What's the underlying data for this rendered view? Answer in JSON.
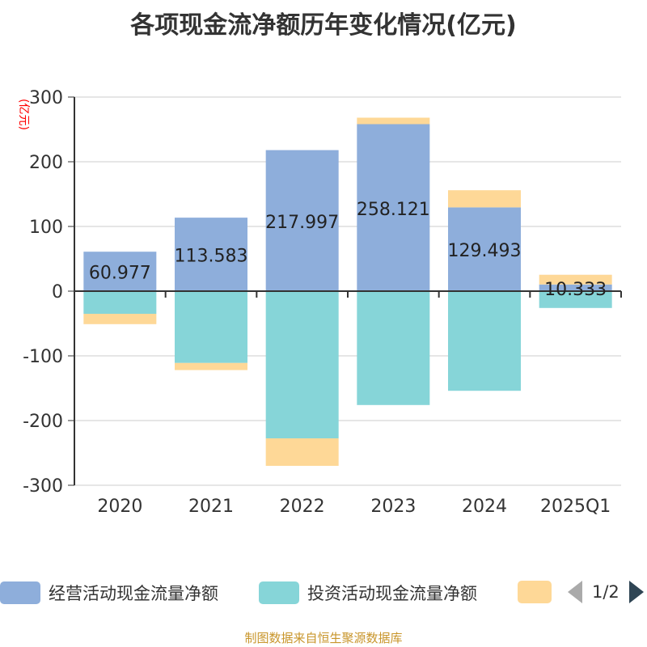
{
  "chart_data": {
    "type": "bar",
    "stacked": true,
    "title": "各项现金流净额历年变化情况(亿元)",
    "ylabel": "(亿元)",
    "categories": [
      "2020",
      "2021",
      "2022",
      "2023",
      "2024",
      "2025Q1"
    ],
    "ylim": [
      -300,
      300
    ],
    "yticks": [
      300,
      200,
      100,
      0,
      -100,
      -200,
      -300
    ],
    "grid": true,
    "series": [
      {
        "name": "经营活动现金流量净额",
        "color": "#8eaedb",
        "values": [
          60.977,
          113.583,
          217.997,
          258.121,
          129.493,
          10.333
        ],
        "labels": [
          "60.977",
          "113.583",
          "217.997",
          "258.121",
          "129.493",
          "10.333"
        ]
      },
      {
        "name": "投资活动现金流量净额",
        "color": "#86d5d8",
        "values": [
          -35,
          -111,
          -227.5,
          -176,
          -154,
          -26
        ]
      },
      {
        "color": "#fed897",
        "values": [
          -16,
          -11,
          -42.5,
          10,
          26.5,
          15
        ]
      }
    ],
    "legend": {
      "position": "bottom",
      "page": "1/2"
    }
  },
  "source": "制图数据来自恒生聚源数据库"
}
